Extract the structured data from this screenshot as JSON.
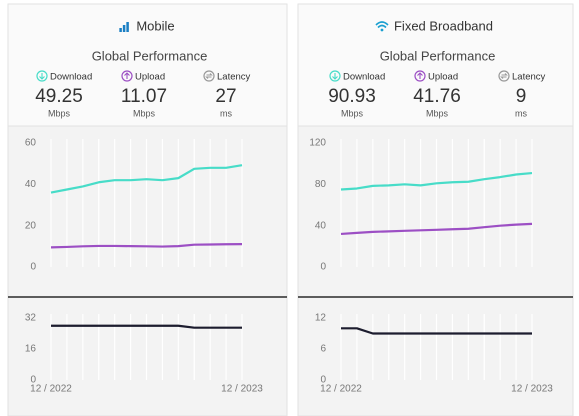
{
  "panels": [
    {
      "title": "Mobile",
      "subtitle": "Global Performance",
      "stats": [
        {
          "label": "Download",
          "value": 49.25,
          "unit": "Mbps"
        },
        {
          "label": "Upload",
          "value": 11.07,
          "unit": "Mbps"
        },
        {
          "label": "Latency",
          "value": 27,
          "unit": "ms"
        }
      ]
    },
    {
      "title": "Fixed Broadband",
      "subtitle": "Global Performance",
      "stats": [
        {
          "label": "Download",
          "value": 90.93,
          "unit": "Mbps"
        },
        {
          "label": "Upload",
          "value": 41.76,
          "unit": "Mbps"
        },
        {
          "label": "Latency",
          "value": 9,
          "unit": "ms"
        }
      ]
    }
  ],
  "chart_data": [
    {
      "type": "line",
      "ylim": [
        0,
        60
      ],
      "yticks": [
        0,
        20,
        40,
        60
      ],
      "series": [
        {
          "color": "#47dcc8",
          "values": [
            36,
            37.5,
            39,
            41,
            42,
            42,
            42.5,
            42,
            43,
            47.5,
            48,
            48,
            49.25
          ]
        },
        {
          "color": "#9c4fc4",
          "values": [
            9.5,
            9.7,
            10,
            10.2,
            10.2,
            10.1,
            10,
            9.9,
            10.1,
            10.8,
            10.9,
            11,
            11.07
          ]
        }
      ]
    },
    {
      "type": "line",
      "ylim": [
        0,
        32
      ],
      "yticks": [
        0,
        16,
        32
      ],
      "categories": [
        "12 / 2022",
        null,
        null,
        null,
        null,
        null,
        null,
        null,
        null,
        null,
        null,
        null,
        "12 / 2023"
      ],
      "series": [
        {
          "color": "#1c1c2e",
          "values": [
            28,
            28,
            28,
            28,
            28,
            28,
            28,
            28,
            28,
            27,
            27,
            27,
            27
          ]
        }
      ]
    },
    {
      "type": "line",
      "ylim": [
        0,
        120
      ],
      "yticks": [
        0,
        40,
        80,
        120
      ],
      "series": [
        {
          "color": "#47dcc8",
          "values": [
            75,
            76,
            78.5,
            79,
            80,
            79,
            81,
            82,
            82.5,
            85,
            87,
            89.5,
            90.93
          ]
        },
        {
          "color": "#9c4fc4",
          "values": [
            32,
            33,
            34,
            34.5,
            35,
            35.5,
            36,
            36.5,
            37,
            38.5,
            40,
            41,
            41.76
          ]
        }
      ]
    },
    {
      "type": "line",
      "ylim": [
        0,
        12
      ],
      "yticks": [
        0,
        6,
        12
      ],
      "categories": [
        "12 / 2022",
        null,
        null,
        null,
        null,
        null,
        null,
        null,
        null,
        null,
        null,
        null,
        "12 / 2023"
      ],
      "series": [
        {
          "color": "#1c1c2e",
          "values": [
            10,
            10,
            9,
            9,
            9,
            9,
            9,
            9,
            9,
            9,
            9,
            9,
            9
          ]
        }
      ]
    }
  ]
}
